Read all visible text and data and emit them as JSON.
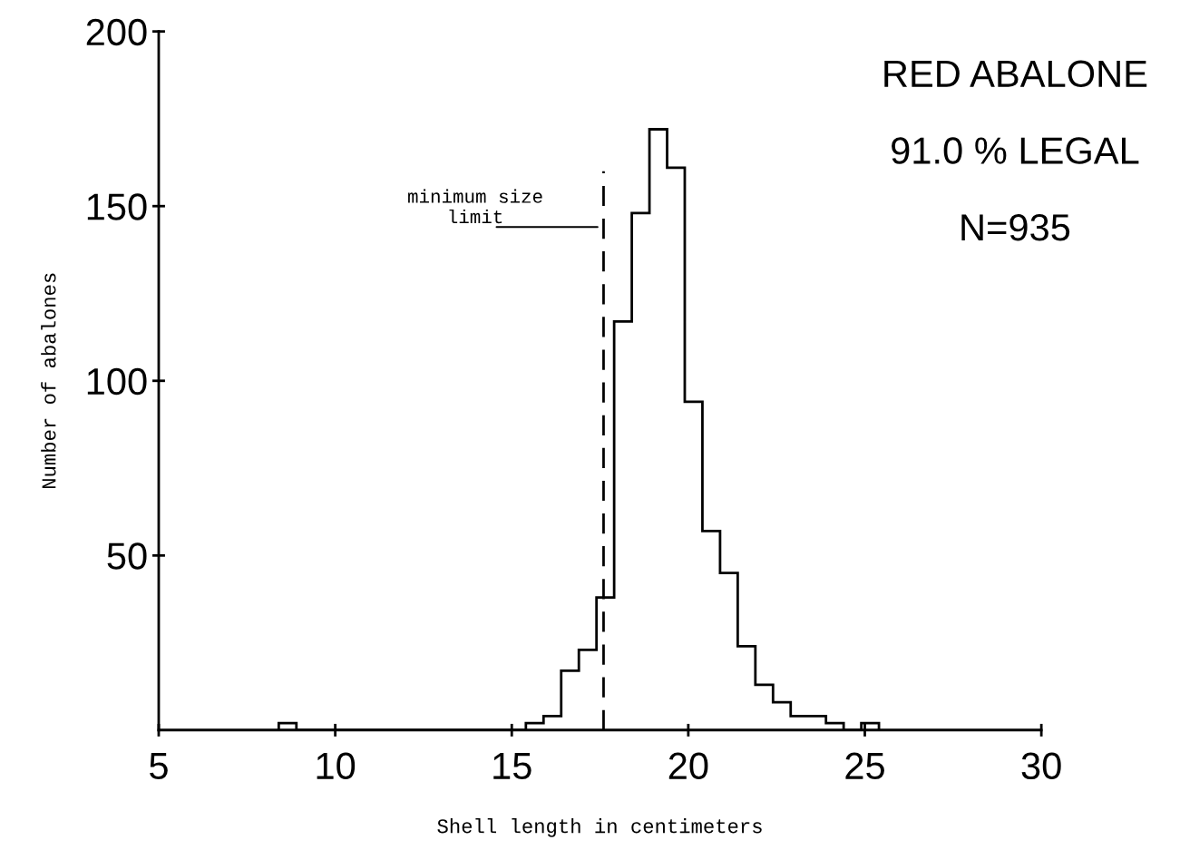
{
  "chart_data": {
    "type": "histogram",
    "xlabel": "Shell length in centimeters",
    "ylabel": "Number of abalones",
    "bins": [
      8.4,
      8.9,
      9.4,
      9.9,
      10.4,
      10.9,
      11.4,
      11.9,
      12.4,
      12.9,
      13.4,
      13.9,
      14.4,
      14.9,
      15.4,
      15.9,
      16.4,
      16.9,
      17.4,
      17.9,
      18.4,
      18.9,
      19.4,
      19.9,
      20.4,
      20.9,
      21.4,
      21.9,
      22.4,
      22.9,
      23.4,
      23.9,
      24.4,
      24.9,
      25.4
    ],
    "values": [
      2,
      0,
      0,
      0,
      0,
      0,
      0,
      0,
      0,
      0,
      0,
      0,
      0,
      0,
      2,
      4,
      17,
      23,
      38,
      117,
      148,
      172,
      161,
      94,
      57,
      45,
      24,
      13,
      8,
      4,
      4,
      2,
      0,
      2
    ],
    "color": "#000000",
    "xlim": [
      5,
      30
    ],
    "xticks": [
      5,
      10,
      15,
      20,
      25,
      30
    ],
    "ylim": [
      0,
      200
    ],
    "yticks": [
      50,
      100,
      150,
      200
    ],
    "grid": false,
    "ref_lines": [
      {
        "axis": "x",
        "value": 17.6,
        "label": "minimum size\nlimit",
        "line_style": "dashed",
        "color": "#000000"
      }
    ],
    "annotations": [
      "RED ABALONE",
      "91.0 % LEGAL",
      "N=935"
    ]
  }
}
